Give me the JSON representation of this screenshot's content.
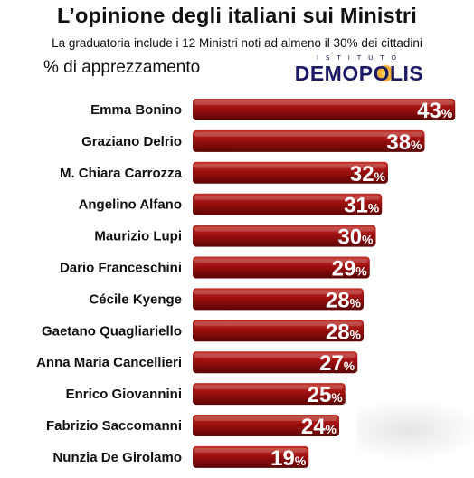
{
  "header": {
    "title": "L’opinione degli italiani sui Ministri",
    "subtitle": "La graduatoria include i 12 Ministri noti ad almeno il 30% dei cittadini"
  },
  "logo": {
    "top_text": "ISTITUTO",
    "main_text": "DEMOPOLIS"
  },
  "chart_data": {
    "type": "bar",
    "orientation": "horizontal",
    "title": "L’opinione degli italiani sui Ministri",
    "subtitle": "La graduatoria include i 12 Ministri noti ad almeno il 30% dei cittadini",
    "ylabel": "% di apprezzamento",
    "value_suffix": "%",
    "bar_color": "#9e0f0f",
    "bar_color_light": "#c0322a",
    "bar_color_dark": "#5a0505",
    "categories": [
      "Emma Bonino",
      "Graziano Delrio",
      "M. Chiara Carrozza",
      "Angelino Alfano",
      "Maurizio Lupi",
      "Dario Franceschini",
      "Cécile Kyenge",
      "Gaetano Quagliariello",
      "Anna Maria Cancellieri",
      "Enrico Giovannini",
      "Fabrizio Saccomanni",
      "Nunzia De Girolamo"
    ],
    "values": [
      43,
      38,
      32,
      31,
      30,
      29,
      28,
      28,
      27,
      25,
      24,
      19
    ]
  }
}
